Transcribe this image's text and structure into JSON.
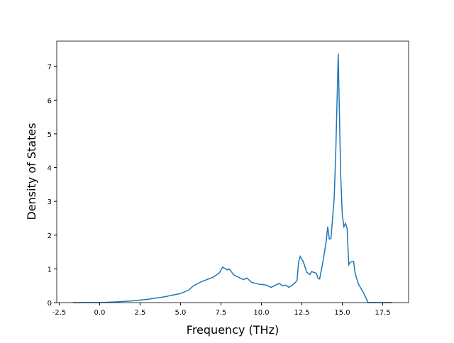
{
  "chart_data": {
    "type": "line",
    "xlabel": "Frequency (THz)",
    "ylabel": "Density of States",
    "x": [
      -1.65,
      0,
      1,
      2,
      3,
      4,
      5,
      5.5,
      5.8,
      6.3,
      7,
      7.4,
      7.6,
      7.9,
      8.0,
      8.3,
      8.6,
      8.9,
      9.1,
      9.4,
      9.8,
      10.3,
      10.6,
      10.8,
      11.1,
      11.3,
      11.5,
      11.7,
      12.0,
      12.2,
      12.3,
      12.4,
      12.6,
      12.8,
      13.0,
      13.1,
      13.4,
      13.5,
      13.6,
      13.8,
      14.0,
      14.1,
      14.2,
      14.3,
      14.4,
      14.5,
      14.6,
      14.75,
      14.9,
      15.0,
      15.1,
      15.2,
      15.3,
      15.4,
      15.5,
      15.7,
      15.8,
      16.0,
      16.3,
      16.5,
      16.6,
      17,
      18.1
    ],
    "series": [
      {
        "color": "#1f77b4",
        "values": [
          0,
          0,
          0.02,
          0.05,
          0.1,
          0.17,
          0.27,
          0.37,
          0.5,
          0.62,
          0.75,
          0.88,
          1.05,
          0.97,
          1.0,
          0.82,
          0.75,
          0.68,
          0.73,
          0.6,
          0.55,
          0.52,
          0.45,
          0.5,
          0.57,
          0.5,
          0.52,
          0.45,
          0.55,
          0.65,
          1.2,
          1.37,
          1.2,
          0.9,
          0.83,
          0.92,
          0.87,
          0.72,
          0.7,
          1.2,
          1.8,
          2.25,
          1.88,
          1.9,
          2.5,
          3.1,
          4.5,
          7.38,
          3.8,
          2.6,
          2.25,
          2.35,
          2.2,
          1.12,
          1.2,
          1.22,
          0.85,
          0.55,
          0.3,
          0.1,
          0,
          0,
          0
        ]
      }
    ],
    "xlim": [
      -2.65,
      19.1
    ],
    "ylim": [
      0,
      7.75
    ],
    "xticks": [
      -2.5,
      {
        "value": 0,
        "label": "0.0"
      },
      2.5,
      {
        "value": 5,
        "label": "5.0"
      },
      7.5,
      {
        "value": 10,
        "label": "10.0"
      },
      12.5,
      {
        "value": 15,
        "label": "15.0"
      },
      17.5
    ],
    "yticks": [
      0,
      1,
      2,
      3,
      4,
      5,
      6,
      7
    ]
  }
}
